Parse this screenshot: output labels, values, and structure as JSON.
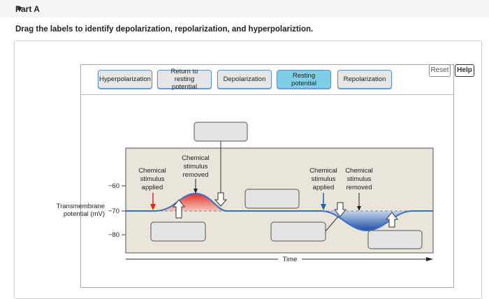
{
  "header": {
    "title": "Part A"
  },
  "instruction": "Drag the labels to identify depolarization, repolarization, and hyperpolariztion.",
  "toolbar": {
    "reset": "Reset",
    "help": "Help"
  },
  "labels": [
    "Hyperpolarization",
    "Return to resting potential",
    "Depolarization",
    "Resting potential",
    "Repolarization"
  ],
  "diagram": {
    "annotations": [
      {
        "lines": [
          "Chemical",
          "stimulus",
          "applied"
        ]
      },
      {
        "lines": [
          "Chemical",
          "stimulus",
          "removed"
        ]
      },
      {
        "lines": [
          "Chemical",
          "stimulus",
          "applied"
        ]
      },
      {
        "lines": [
          "Chemical",
          "stimulus",
          "removed"
        ]
      }
    ],
    "yticks": [
      "−60",
      "−70",
      "−80"
    ],
    "ylabel": [
      "Transmembrane",
      "potential (mV)"
    ],
    "xlabel": "Time"
  }
}
